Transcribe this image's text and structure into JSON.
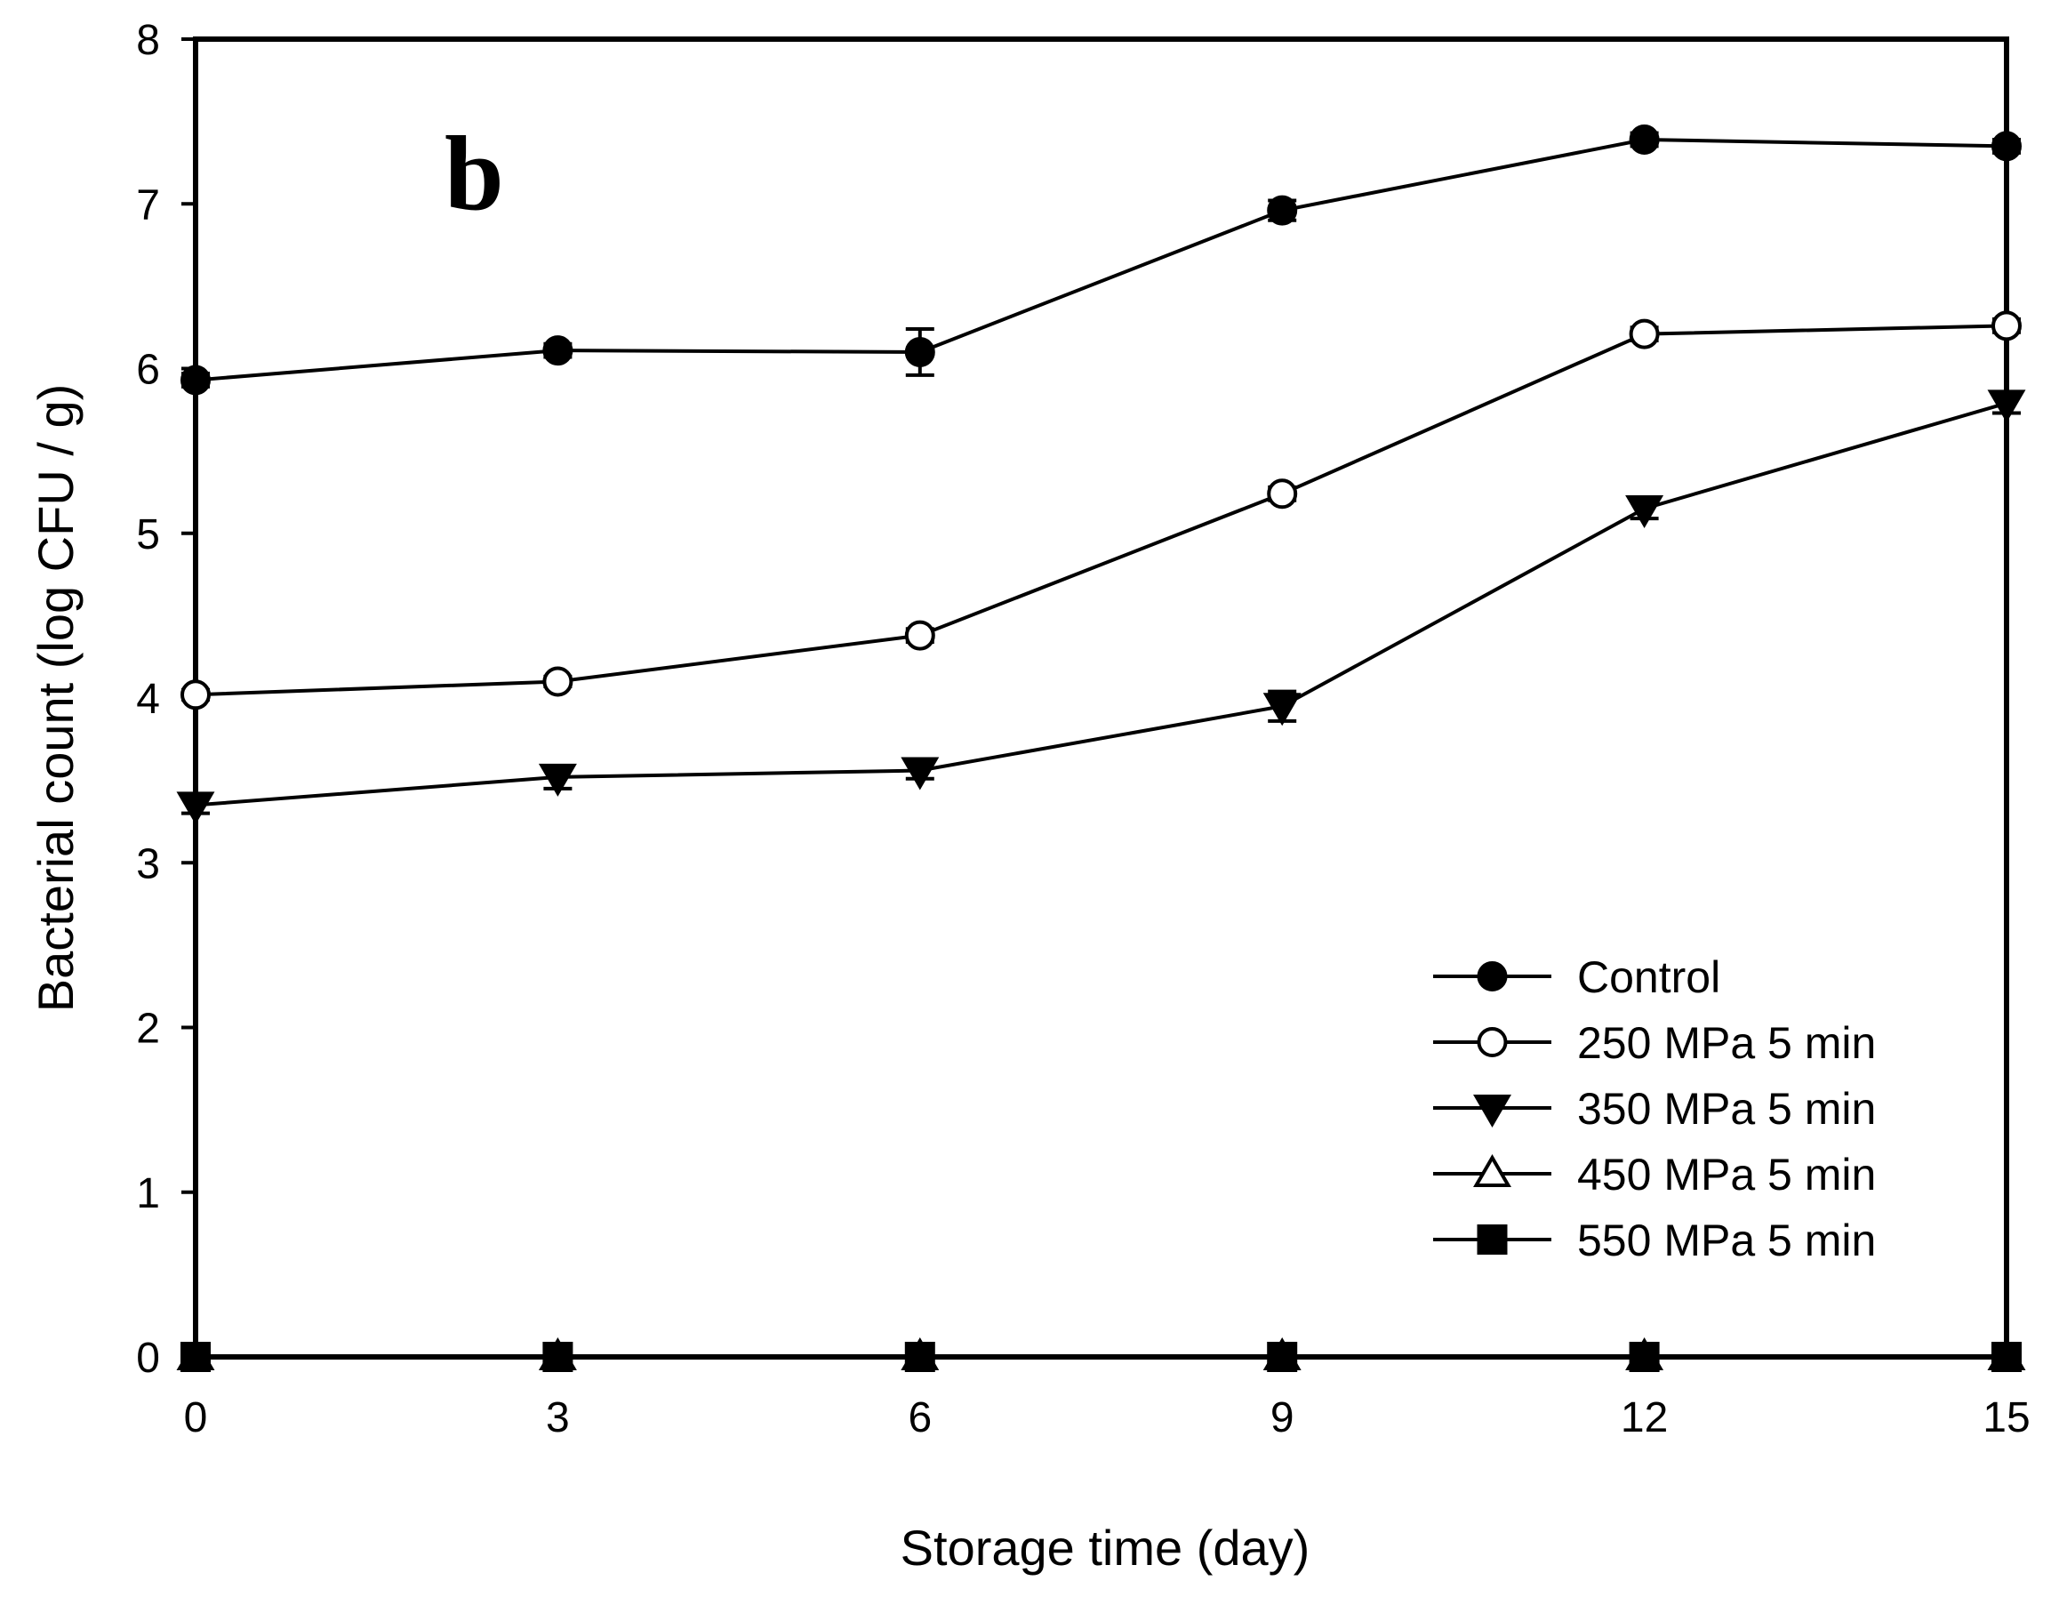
{
  "chart_data": {
    "type": "line",
    "panel_label": "b",
    "xlabel": "Storage time (day)",
    "ylabel": "Bacterial count (log CFU / g)",
    "xlim": [
      0,
      15
    ],
    "ylim": [
      0,
      8
    ],
    "x_ticks": [
      "0",
      "3",
      "6",
      "9",
      "12",
      "15"
    ],
    "y_ticks": [
      "0",
      "1",
      "2",
      "3",
      "4",
      "5",
      "6",
      "7",
      "8"
    ],
    "grid": false,
    "legend_position": "bottom-right",
    "x": [
      0,
      3,
      6,
      9,
      12,
      15
    ],
    "series": [
      {
        "name": "Control",
        "marker": "filled-circle",
        "values": [
          5.93,
          6.11,
          6.1,
          6.96,
          7.39,
          7.35
        ],
        "errors": [
          0.04,
          0.04,
          0.14,
          0.06,
          0.04,
          0.04
        ]
      },
      {
        "name": "250 MPa 5 min",
        "marker": "open-circle",
        "values": [
          4.02,
          4.1,
          4.38,
          5.24,
          6.21,
          6.26
        ],
        "errors": [
          0.03,
          0.03,
          0.04,
          0.04,
          0.04,
          0.04
        ]
      },
      {
        "name": "350 MPa 5 min",
        "marker": "filled-triangle-down",
        "values": [
          3.35,
          3.52,
          3.56,
          3.95,
          5.15,
          5.79
        ],
        "errors": [
          0.05,
          0.07,
          0.05,
          0.09,
          0.06,
          0.06
        ]
      },
      {
        "name": "450 MPa 5 min",
        "marker": "open-triangle-up",
        "values": [
          0,
          0,
          0,
          0,
          0,
          0
        ],
        "errors": [
          0,
          0,
          0,
          0,
          0,
          0
        ]
      },
      {
        "name": "550 MPa 5 min",
        "marker": "filled-square",
        "values": [
          0,
          0,
          0,
          0,
          0,
          0
        ],
        "errors": [
          0,
          0,
          0,
          0,
          0,
          0
        ]
      }
    ]
  }
}
